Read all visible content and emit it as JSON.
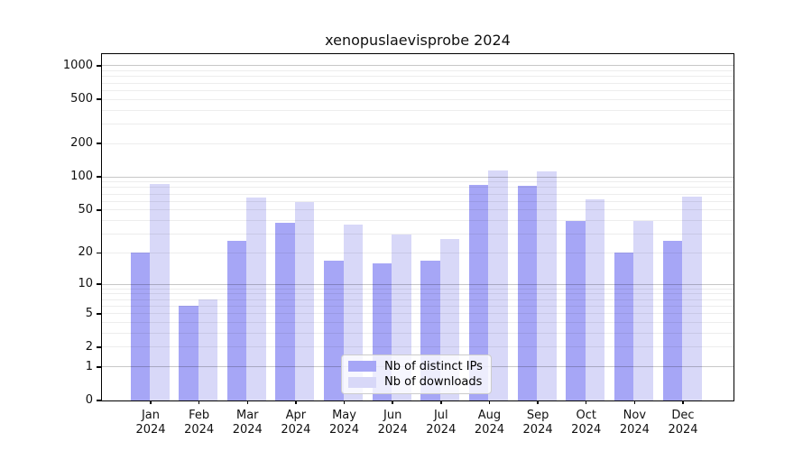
{
  "title": "xenopuslaevisprobe 2024",
  "colors": {
    "distinct_ips": "#a6a6f6",
    "downloads": "#d8d8f8",
    "grid_major": "rgba(0,0,0,0.22)",
    "grid_minor": "rgba(0,0,0,0.07)",
    "axis": "#000000",
    "legend_border": "#cccccc",
    "legend_background": "rgba(255,255,255,0.8)"
  },
  "legend": {
    "items": [
      {
        "label": "Nb of distinct IPs",
        "series": "distinct_ips"
      },
      {
        "label": "Nb of downloads",
        "series": "downloads"
      }
    ]
  },
  "axes": {
    "y_ticks": [
      0,
      1,
      2,
      5,
      10,
      20,
      50,
      100,
      200,
      500,
      1000
    ],
    "y_max": 1272,
    "x_second_line": "2024"
  },
  "chart_data": {
    "type": "bar",
    "scale": "log1p",
    "title": "xenopuslaevisprobe 2024",
    "categories": [
      "Jan",
      "Feb",
      "Mar",
      "Apr",
      "May",
      "Jun",
      "Jul",
      "Aug",
      "Sep",
      "Oct",
      "Nov",
      "Dec"
    ],
    "year": "2024",
    "series": [
      {
        "name": "Nb of distinct IPs",
        "key": "distinct_ips",
        "values": [
          20,
          6,
          26,
          38,
          17,
          16,
          17,
          85,
          83,
          40,
          20,
          26
        ]
      },
      {
        "name": "Nb of downloads",
        "key": "downloads",
        "values": [
          87,
          7,
          65,
          59,
          37,
          30,
          27,
          115,
          112,
          63,
          40,
          66
        ]
      }
    ],
    "xlabel": "",
    "ylabel": "",
    "ylim": [
      0,
      1272
    ],
    "y_tick_values": [
      0,
      1,
      2,
      5,
      10,
      20,
      50,
      100,
      200,
      500,
      1000
    ],
    "grid": true,
    "legend_position": "lower center"
  }
}
